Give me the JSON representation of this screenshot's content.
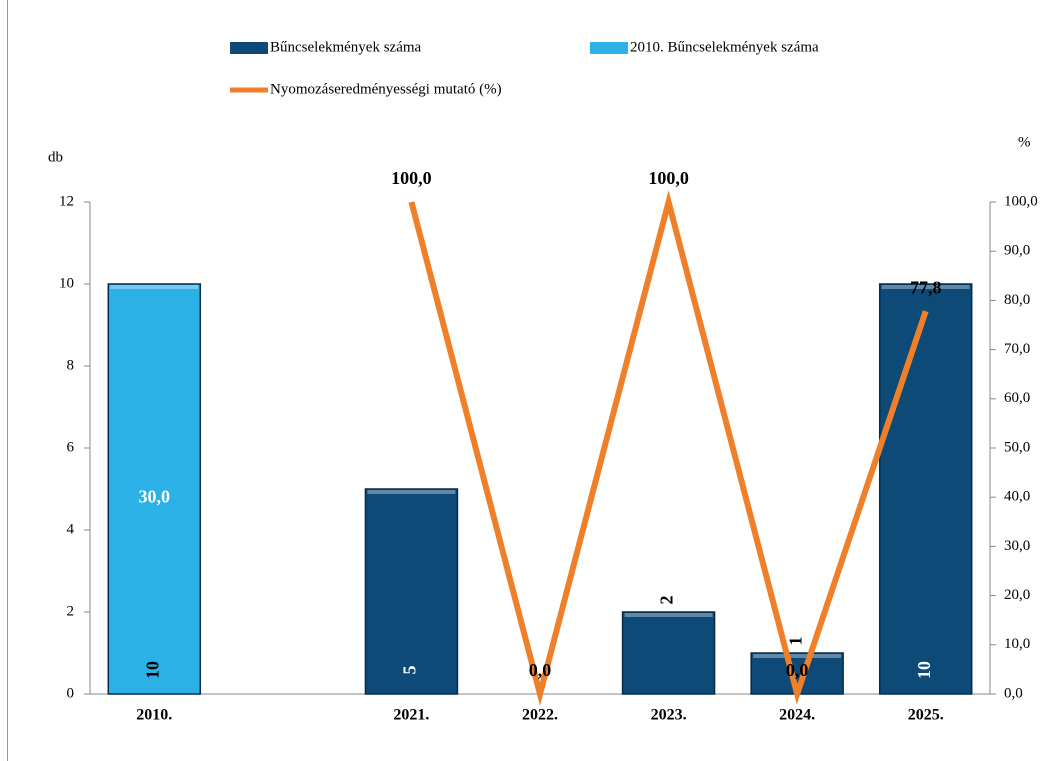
{
  "chart_data": {
    "type": "bar-line",
    "categories": [
      "2010.",
      null,
      "2021.",
      "2022.",
      "2023.",
      "2024.",
      "2025."
    ],
    "series": [
      {
        "name": "Bűncselekmények száma",
        "color": "#0d4a78",
        "values": [
          null,
          null,
          5,
          null,
          2,
          1,
          10
        ]
      },
      {
        "name": "2010. Bűncselekmények száma",
        "color": "#2bb1e6",
        "values": [
          10,
          null,
          null,
          null,
          null,
          null,
          null
        ]
      },
      {
        "name": "Nyomozáseredményességi mutató (%)",
        "color": "#f07f2a",
        "type": "line",
        "axis": "y2",
        "values": [
          30,
          null,
          100,
          0,
          100,
          0,
          77.8
        ],
        "value_labels": [
          "30,0",
          null,
          "100,0",
          "0,0",
          "100,0",
          "0,0",
          "77,8"
        ]
      }
    ],
    "y_label": "db",
    "y2_label": "%",
    "ylim": [
      0,
      12
    ],
    "yticks": [
      0,
      2,
      4,
      6,
      8,
      10,
      12
    ],
    "y2lim": [
      0,
      100
    ],
    "y2ticks": [
      {
        "value": 0,
        "label": "0,0"
      },
      {
        "value": 10,
        "label": "10,0"
      },
      {
        "value": 20,
        "label": "20,0"
      },
      {
        "value": 30,
        "label": "30,0"
      },
      {
        "value": 40,
        "label": "40,0"
      },
      {
        "value": 50,
        "label": "50,0"
      },
      {
        "value": 60,
        "label": "60,0"
      },
      {
        "value": 70,
        "label": "70,0"
      },
      {
        "value": 80,
        "label": "80,0"
      },
      {
        "value": 90,
        "label": "90,0"
      },
      {
        "value": 100,
        "label": "100,0"
      }
    ]
  }
}
